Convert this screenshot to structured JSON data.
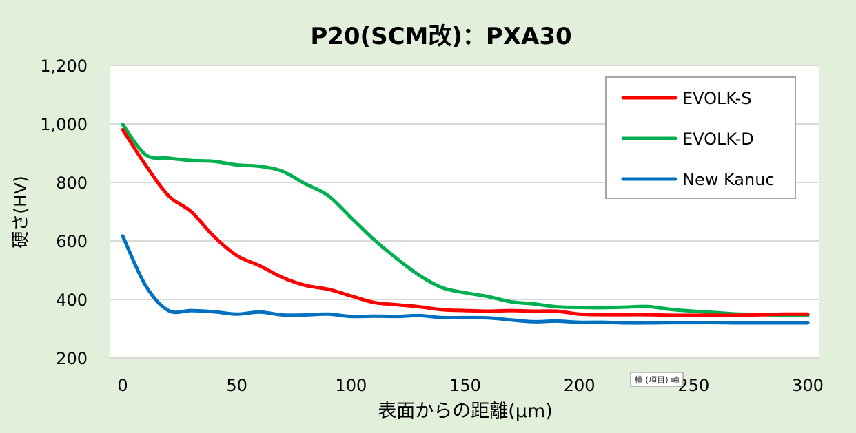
{
  "chart_data": {
    "type": "line",
    "title": "P20(SCM改)：PXA30",
    "xlabel": "表面からの距離(μm)",
    "ylabel": "硬さ(HV)",
    "xlim": [
      0,
      300
    ],
    "ylim": [
      200,
      1200
    ],
    "x_ticks": [
      "0",
      "50",
      "100",
      "150",
      "200",
      "250",
      "300"
    ],
    "y_ticks": [
      "200",
      "400",
      "600",
      "800",
      "1,000",
      "1,200"
    ],
    "grid": "horizontal",
    "legend_position": "top-right",
    "tooltip": "横 (項目) 軸",
    "series": [
      {
        "name": "EVOLK-S",
        "color": "#ff0000",
        "x": [
          0,
          10,
          20,
          30,
          40,
          50,
          60,
          70,
          80,
          90,
          100,
          110,
          120,
          130,
          140,
          150,
          160,
          170,
          180,
          190,
          200,
          210,
          220,
          230,
          240,
          250,
          260,
          270,
          280,
          290,
          300
        ],
        "y": [
          980,
          860,
          755,
          700,
          615,
          550,
          515,
          475,
          448,
          435,
          412,
          390,
          382,
          375,
          365,
          362,
          360,
          362,
          360,
          360,
          350,
          348,
          348,
          348,
          346,
          346,
          346,
          346,
          348,
          350,
          350
        ]
      },
      {
        "name": "EVOLK-D",
        "color": "#00b050",
        "x": [
          0,
          10,
          20,
          30,
          40,
          50,
          60,
          70,
          80,
          90,
          100,
          110,
          120,
          130,
          140,
          150,
          160,
          170,
          180,
          190,
          200,
          210,
          220,
          230,
          240,
          250,
          260,
          270,
          280,
          290,
          300
        ],
        "y": [
          998,
          895,
          883,
          875,
          872,
          860,
          855,
          838,
          795,
          755,
          680,
          605,
          540,
          482,
          440,
          423,
          410,
          392,
          385,
          375,
          373,
          372,
          374,
          376,
          366,
          360,
          355,
          350,
          348,
          346,
          345
        ]
      },
      {
        "name": "New Kanuc",
        "color": "#0070c0",
        "x": [
          0,
          10,
          20,
          30,
          40,
          50,
          60,
          70,
          80,
          90,
          100,
          110,
          120,
          130,
          140,
          150,
          160,
          170,
          180,
          190,
          200,
          210,
          220,
          230,
          240,
          250,
          260,
          270,
          280,
          290,
          300
        ],
        "y": [
          617,
          448,
          362,
          362,
          358,
          350,
          357,
          347,
          347,
          350,
          342,
          343,
          342,
          345,
          338,
          338,
          337,
          330,
          324,
          326,
          322,
          322,
          320,
          320,
          321,
          321,
          321,
          320,
          320,
          320,
          320
        ]
      }
    ]
  }
}
